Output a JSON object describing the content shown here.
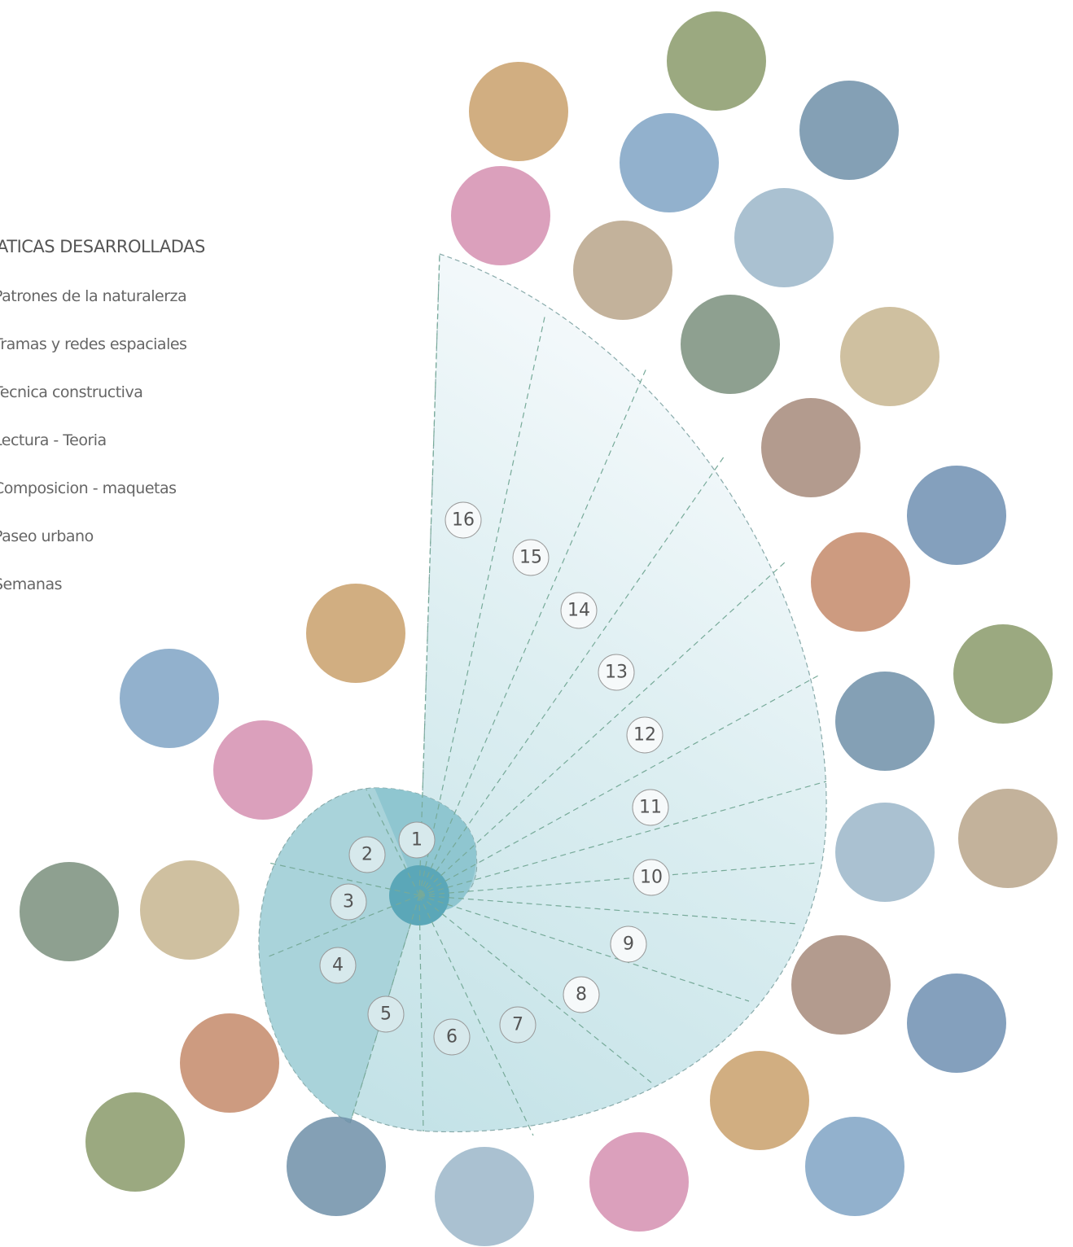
{
  "legend": {
    "title": "ATICAS DESARROLLADAS",
    "items": [
      "Patrones de la naturalerza",
      "Tramas y redes espaciales",
      "Tecnica constructiva",
      "Lectura - Teoria",
      "Composicion - maquetas",
      "Paseo urbano",
      "Semanas"
    ]
  },
  "weeks": [
    "1",
    "2",
    "3",
    "4",
    "5",
    "6",
    "7",
    "8",
    "9",
    "10",
    "11",
    "12",
    "13",
    "14",
    "15",
    "16"
  ]
}
